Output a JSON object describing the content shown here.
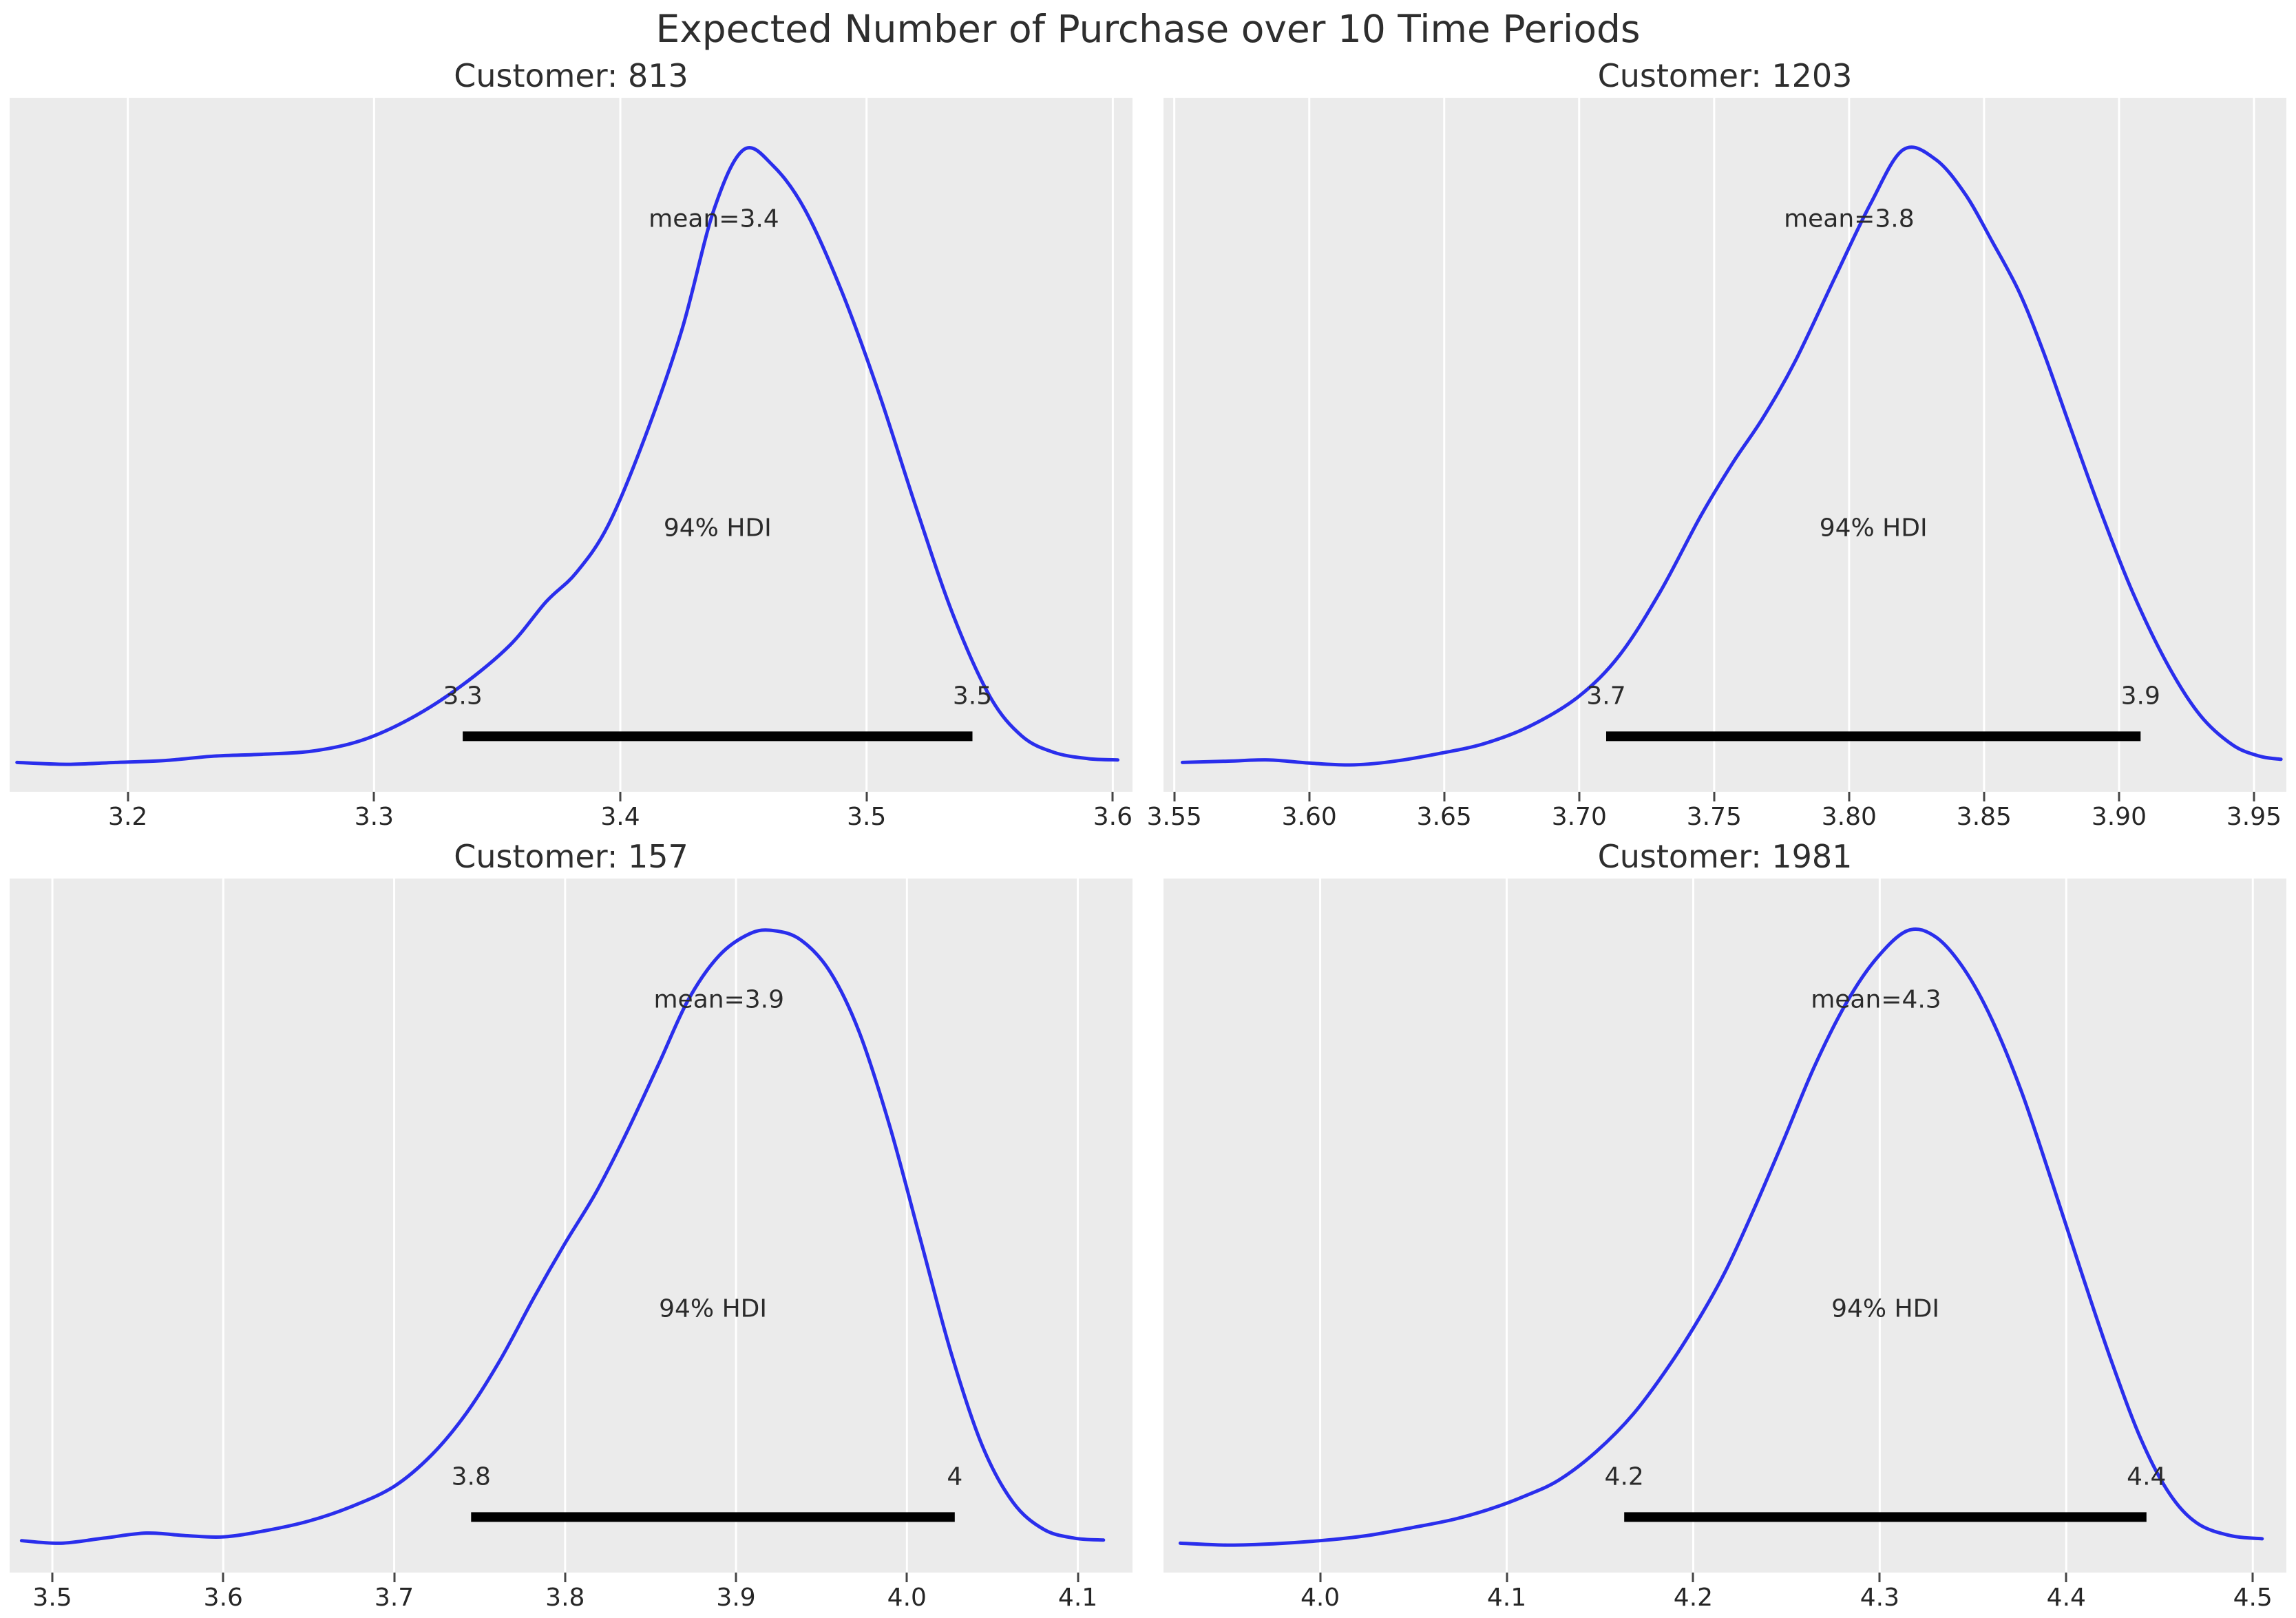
{
  "figure": {
    "title": "Expected Number of Purchase over 10 Time Periods"
  },
  "style": {
    "figure_bg": "#ffffff",
    "panel_bg": "#ebebeb",
    "grid_color": "#ffffff",
    "curve_color": "#2a2eec",
    "hdi_bar_color": "#000000",
    "title_color": "#2e2e2e",
    "annotation_color": "#2b2b2b",
    "tick_label_color": "#262626"
  },
  "chart_data": [
    {
      "type": "kde",
      "title": "Customer: 813",
      "customer_id": "813",
      "mean_label": "mean=3.4",
      "mean_x": 3.438,
      "hdi_label": "94% HDI",
      "hdi": {
        "low": 3.336,
        "high": 3.543,
        "low_label": "3.3",
        "high_label": "3.5"
      },
      "xlim": [
        3.152,
        3.608
      ],
      "xticks": [
        {
          "v": 3.2,
          "label": "3.2"
        },
        {
          "v": 3.3,
          "label": "3.3"
        },
        {
          "v": 3.4,
          "label": "3.4"
        },
        {
          "v": 3.5,
          "label": "3.5"
        },
        {
          "v": 3.6,
          "label": "3.6"
        }
      ],
      "curve": [
        [
          3.155,
          0.03
        ],
        [
          3.175,
          0.027
        ],
        [
          3.195,
          0.03
        ],
        [
          3.215,
          0.033
        ],
        [
          3.235,
          0.04
        ],
        [
          3.255,
          0.043
        ],
        [
          3.275,
          0.048
        ],
        [
          3.295,
          0.065
        ],
        [
          3.315,
          0.1
        ],
        [
          3.335,
          0.15
        ],
        [
          3.355,
          0.215
        ],
        [
          3.37,
          0.285
        ],
        [
          3.382,
          0.33
        ],
        [
          3.395,
          0.405
        ],
        [
          3.41,
          0.545
        ],
        [
          3.425,
          0.715
        ],
        [
          3.438,
          0.905
        ],
        [
          3.45,
          1.0
        ],
        [
          3.462,
          0.975
        ],
        [
          3.475,
          0.905
        ],
        [
          3.49,
          0.775
        ],
        [
          3.505,
          0.615
        ],
        [
          3.52,
          0.435
        ],
        [
          3.535,
          0.265
        ],
        [
          3.55,
          0.135
        ],
        [
          3.563,
          0.072
        ],
        [
          3.576,
          0.046
        ],
        [
          3.59,
          0.036
        ],
        [
          3.602,
          0.034
        ]
      ]
    },
    {
      "type": "kde",
      "title": "Customer: 1203",
      "customer_id": "1203",
      "mean_label": "mean=3.8",
      "mean_x": 3.8,
      "hdi_label": "94% HDI",
      "hdi": {
        "low": 3.71,
        "high": 3.908,
        "low_label": "3.7",
        "high_label": "3.9"
      },
      "xlim": [
        3.546,
        3.962
      ],
      "xticks": [
        {
          "v": 3.55,
          "label": "3.55"
        },
        {
          "v": 3.6,
          "label": "3.60"
        },
        {
          "v": 3.65,
          "label": "3.65"
        },
        {
          "v": 3.7,
          "label": "3.70"
        },
        {
          "v": 3.75,
          "label": "3.75"
        },
        {
          "v": 3.8,
          "label": "3.80"
        },
        {
          "v": 3.85,
          "label": "3.85"
        },
        {
          "v": 3.9,
          "label": "3.90"
        },
        {
          "v": 3.95,
          "label": "3.95"
        }
      ],
      "curve": [
        [
          3.553,
          0.03
        ],
        [
          3.57,
          0.032
        ],
        [
          3.585,
          0.034
        ],
        [
          3.6,
          0.029
        ],
        [
          3.615,
          0.026
        ],
        [
          3.63,
          0.031
        ],
        [
          3.648,
          0.044
        ],
        [
          3.665,
          0.06
        ],
        [
          3.682,
          0.088
        ],
        [
          3.7,
          0.135
        ],
        [
          3.715,
          0.2
        ],
        [
          3.73,
          0.3
        ],
        [
          3.745,
          0.42
        ],
        [
          3.757,
          0.505
        ],
        [
          3.768,
          0.575
        ],
        [
          3.78,
          0.665
        ],
        [
          3.795,
          0.8
        ],
        [
          3.808,
          0.915
        ],
        [
          3.82,
          1.0
        ],
        [
          3.832,
          0.985
        ],
        [
          3.843,
          0.93
        ],
        [
          3.853,
          0.855
        ],
        [
          3.863,
          0.775
        ],
        [
          3.872,
          0.68
        ],
        [
          3.882,
          0.56
        ],
        [
          3.893,
          0.43
        ],
        [
          3.905,
          0.3
        ],
        [
          3.918,
          0.185
        ],
        [
          3.93,
          0.105
        ],
        [
          3.942,
          0.058
        ],
        [
          3.952,
          0.04
        ],
        [
          3.96,
          0.035
        ]
      ]
    },
    {
      "type": "kde",
      "title": "Customer: 157",
      "customer_id": "157",
      "mean_label": "mean=3.9",
      "mean_x": 3.89,
      "hdi_label": "94% HDI",
      "hdi": {
        "low": 3.745,
        "high": 4.028,
        "low_label": "3.8",
        "high_label": "4"
      },
      "xlim": [
        3.475,
        4.132
      ],
      "xticks": [
        {
          "v": 3.5,
          "label": "3.5"
        },
        {
          "v": 3.6,
          "label": "3.6"
        },
        {
          "v": 3.7,
          "label": "3.7"
        },
        {
          "v": 3.8,
          "label": "3.8"
        },
        {
          "v": 3.9,
          "label": "3.9"
        },
        {
          "v": 4.0,
          "label": "4.0"
        },
        {
          "v": 4.1,
          "label": "4.1"
        }
      ],
      "curve": [
        [
          3.482,
          0.034
        ],
        [
          3.505,
          0.03
        ],
        [
          3.53,
          0.038
        ],
        [
          3.555,
          0.046
        ],
        [
          3.578,
          0.042
        ],
        [
          3.6,
          0.04
        ],
        [
          3.625,
          0.05
        ],
        [
          3.65,
          0.065
        ],
        [
          3.675,
          0.088
        ],
        [
          3.7,
          0.12
        ],
        [
          3.722,
          0.17
        ],
        [
          3.742,
          0.235
        ],
        [
          3.762,
          0.32
        ],
        [
          3.782,
          0.42
        ],
        [
          3.8,
          0.505
        ],
        [
          3.818,
          0.585
        ],
        [
          3.836,
          0.68
        ],
        [
          3.855,
          0.79
        ],
        [
          3.872,
          0.89
        ],
        [
          3.89,
          0.96
        ],
        [
          3.908,
          0.995
        ],
        [
          3.922,
          1.0
        ],
        [
          3.938,
          0.985
        ],
        [
          3.955,
          0.935
        ],
        [
          3.972,
          0.84
        ],
        [
          3.99,
          0.69
        ],
        [
          4.008,
          0.51
        ],
        [
          4.026,
          0.33
        ],
        [
          4.044,
          0.185
        ],
        [
          4.062,
          0.095
        ],
        [
          4.08,
          0.052
        ],
        [
          4.098,
          0.038
        ],
        [
          4.115,
          0.035
        ]
      ]
    },
    {
      "type": "kde",
      "title": "Customer: 1981",
      "customer_id": "1981",
      "mean_label": "mean=4.3",
      "mean_x": 4.298,
      "hdi_label": "94% HDI",
      "hdi": {
        "low": 4.163,
        "high": 4.443,
        "low_label": "4.2",
        "high_label": "4.4"
      },
      "xlim": [
        3.916,
        4.518
      ],
      "xticks": [
        {
          "v": 4.0,
          "label": "4.0"
        },
        {
          "v": 4.1,
          "label": "4.1"
        },
        {
          "v": 4.2,
          "label": "4.2"
        },
        {
          "v": 4.3,
          "label": "4.3"
        },
        {
          "v": 4.4,
          "label": "4.4"
        },
        {
          "v": 4.5,
          "label": "4.5"
        }
      ],
      "curve": [
        [
          3.925,
          0.03
        ],
        [
          3.95,
          0.027
        ],
        [
          3.975,
          0.029
        ],
        [
          4.0,
          0.034
        ],
        [
          4.025,
          0.042
        ],
        [
          4.05,
          0.055
        ],
        [
          4.072,
          0.068
        ],
        [
          4.092,
          0.085
        ],
        [
          4.11,
          0.105
        ],
        [
          4.128,
          0.13
        ],
        [
          4.148,
          0.175
        ],
        [
          4.168,
          0.235
        ],
        [
          4.188,
          0.315
        ],
        [
          4.205,
          0.395
        ],
        [
          4.218,
          0.465
        ],
        [
          4.232,
          0.555
        ],
        [
          4.248,
          0.665
        ],
        [
          4.265,
          0.785
        ],
        [
          4.282,
          0.885
        ],
        [
          4.298,
          0.955
        ],
        [
          4.315,
          1.0
        ],
        [
          4.33,
          0.99
        ],
        [
          4.345,
          0.94
        ],
        [
          4.36,
          0.86
        ],
        [
          4.376,
          0.745
        ],
        [
          4.392,
          0.605
        ],
        [
          4.408,
          0.46
        ],
        [
          4.424,
          0.32
        ],
        [
          4.44,
          0.195
        ],
        [
          4.455,
          0.11
        ],
        [
          4.47,
          0.062
        ],
        [
          4.488,
          0.042
        ],
        [
          4.505,
          0.037
        ]
      ]
    }
  ]
}
